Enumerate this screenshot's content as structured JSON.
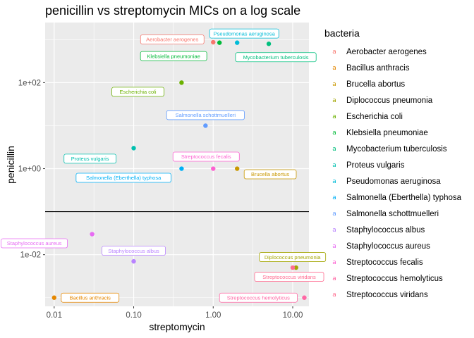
{
  "chart_data": {
    "type": "scatter",
    "title": "penicillin vs streptomycin MICs on a log scale",
    "xlabel": "streptomycin",
    "ylabel": "penicillin",
    "x_scale": "log10",
    "y_scale": "log10",
    "xlim": [
      0.0077,
      16
    ],
    "ylim": [
      0.00063,
      2500
    ],
    "x_ticks": [
      {
        "value": 0.01,
        "label": "0.01"
      },
      {
        "value": 0.1,
        "label": "0.10"
      },
      {
        "value": 1,
        "label": "1.00"
      },
      {
        "value": 10,
        "label": "10.00"
      }
    ],
    "y_ticks": [
      {
        "value": 0.01,
        "label": "1e-02"
      },
      {
        "value": 1,
        "label": "1e+00"
      },
      {
        "value": 100,
        "label": "1e+02"
      }
    ],
    "reference_line": {
      "y": 0.1
    },
    "legend": {
      "title": "bacteria",
      "position": "right"
    },
    "series": [
      {
        "name": "Aerobacter aerogenes",
        "color": "#F8766D",
        "x": 1.0,
        "y": 870,
        "label_dir": "left"
      },
      {
        "name": "Bacillus anthracis",
        "color": "#E58700",
        "x": 0.01,
        "y": 0.001,
        "label_dir": "right"
      },
      {
        "name": "Brucella abortus",
        "color": "#C99800",
        "x": 2.0,
        "y": 1.0,
        "label_dir": "right"
      },
      {
        "name": "Diplococcus pneumonia",
        "color": "#A3A500",
        "x": 11.0,
        "y": 0.005,
        "label_dir": "up"
      },
      {
        "name": "Escherichia coli",
        "color": "#6BB100",
        "x": 0.4,
        "y": 100,
        "label_dir": "downleft"
      },
      {
        "name": "Klebsiella pneumoniae",
        "color": "#00BA38",
        "x": 1.2,
        "y": 850,
        "label_dir": "downleft"
      },
      {
        "name": "Mycobacterium tuberculosis",
        "color": "#00BF7D",
        "x": 5.0,
        "y": 800,
        "label_dir": "down"
      },
      {
        "name": "Proteus vulgaris",
        "color": "#00C0AF",
        "x": 0.1,
        "y": 3.0,
        "label_dir": "downleft"
      },
      {
        "name": "Pseudomonas aeruginosa",
        "color": "#00BCD8",
        "x": 2.0,
        "y": 850,
        "label_dir": "up"
      },
      {
        "name": "Salmonella (Eberthella) typhosa",
        "color": "#00B0F6",
        "x": 0.4,
        "y": 1.0,
        "label_dir": "downleft"
      },
      {
        "name": "Salmonella schottmuelleri",
        "color": "#619CFF",
        "x": 0.8,
        "y": 10,
        "label_dir": "up"
      },
      {
        "name": "Staphylococcus albus",
        "color": "#B983FF",
        "x": 0.1,
        "y": 0.007,
        "label_dir": "up"
      },
      {
        "name": "Staphylococcus aureus",
        "color": "#E76BF3",
        "x": 0.03,
        "y": 0.03,
        "label_dir": "downleft"
      },
      {
        "name": "Streptococcus fecalis",
        "color": "#FD61D1",
        "x": 1.0,
        "y": 1.0,
        "label_dir": "upleft"
      },
      {
        "name": "Streptococcus hemolyticus",
        "color": "#FF67A4",
        "x": 14.0,
        "y": 0.001,
        "label_dir": "left"
      },
      {
        "name": "Streptococcus viridans",
        "color": "#FF6C90",
        "x": 10.0,
        "y": 0.005,
        "label_dir": "down"
      }
    ]
  }
}
